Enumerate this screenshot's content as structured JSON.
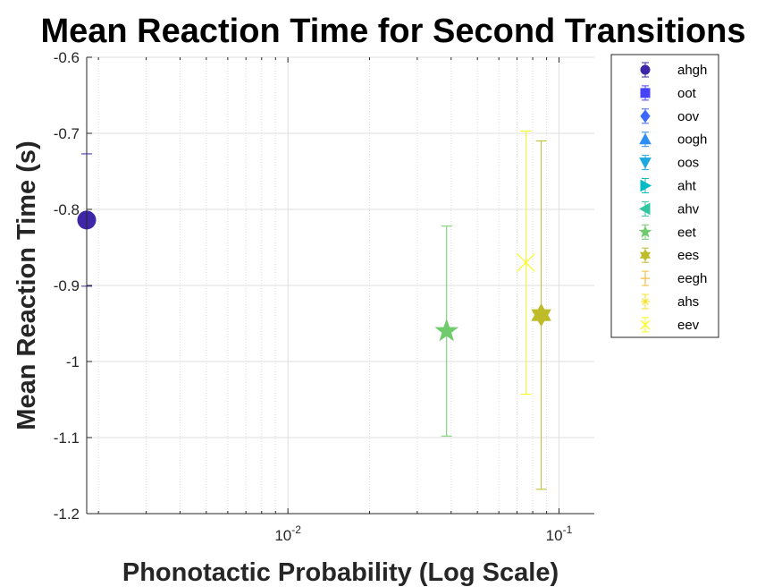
{
  "chart_data": {
    "type": "scatter",
    "title": "Mean Reaction Time for Second Transitions",
    "xlabel": "Phonotactic Probability (Log Scale)",
    "ylabel": "Mean Reaction Time (s)",
    "xscale": "log",
    "xlim": [
      0.00181,
      0.135
    ],
    "ylim": [
      -1.2,
      -0.6
    ],
    "grid": true,
    "minor_grid_x": true,
    "legend_position": "outside-right-top",
    "x_ticks": [
      {
        "value": 0.01,
        "base": "10",
        "exponent": "-2"
      },
      {
        "value": 0.1,
        "base": "10",
        "exponent": "-1"
      }
    ],
    "y_ticks": [
      {
        "value": -0.6,
        "label": "-0.6"
      },
      {
        "value": -0.7,
        "label": "-0.7"
      },
      {
        "value": -0.8,
        "label": "-0.8"
      },
      {
        "value": -0.9,
        "label": "-0.9"
      },
      {
        "value": -1.0,
        "label": "-1"
      },
      {
        "value": -1.1,
        "label": "-1.1"
      },
      {
        "value": -1.2,
        "label": "-1.2"
      }
    ],
    "series": [
      {
        "name": "ahgh",
        "marker": "circle",
        "color": "#3e26a8",
        "points": [
          {
            "x": 0.00181,
            "y": -0.814,
            "err": 0.087
          }
        ]
      },
      {
        "name": "oot",
        "marker": "square",
        "color": "#4743f9",
        "points": []
      },
      {
        "name": "oov",
        "marker": "diamond",
        "color": "#3d68fe",
        "points": []
      },
      {
        "name": "oogh",
        "marker": "triangle-up",
        "color": "#2d8ef2",
        "points": []
      },
      {
        "name": "oos",
        "marker": "triangle-down",
        "color": "#1ca9df",
        "points": []
      },
      {
        "name": "aht",
        "marker": "triangle-right",
        "color": "#05bcc4",
        "points": []
      },
      {
        "name": "ahv",
        "marker": "triangle-left",
        "color": "#31c69f",
        "points": []
      },
      {
        "name": "eet",
        "marker": "pentagram",
        "color": "#6fcb6c",
        "points": [
          {
            "x": 0.0385,
            "y": -0.96,
            "err": 0.138
          }
        ]
      },
      {
        "name": "ees",
        "marker": "hexagram",
        "color": "#bfbc2a",
        "points": [
          {
            "x": 0.086,
            "y": -0.939,
            "err": 0.229
          }
        ]
      },
      {
        "name": "eegh",
        "marker": "plus",
        "color": "#f8ba3b",
        "points": []
      },
      {
        "name": "ahs",
        "marker": "asterisk",
        "color": "#f5e129",
        "points": []
      },
      {
        "name": "eev",
        "marker": "x",
        "color": "#f9fa15",
        "points": [
          {
            "x": 0.0755,
            "y": -0.87,
            "err": 0.173
          }
        ]
      }
    ]
  }
}
